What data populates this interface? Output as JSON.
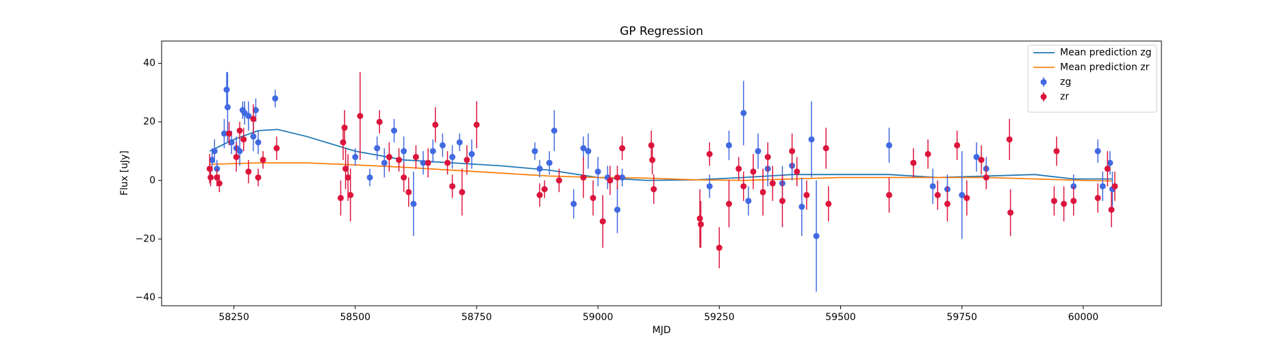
{
  "chart_data": {
    "type": "scatter",
    "title": "GP Regression",
    "xlabel": "MJD",
    "ylabel": "Flux [uJy]",
    "xlim": [
      58101,
      60161
    ],
    "ylim": [
      -42.8,
      47.6
    ],
    "xticks": [
      58250,
      58500,
      58750,
      59000,
      59250,
      59500,
      59750,
      60000
    ],
    "yticks": [
      {
        "value": -40,
        "label": "−40"
      },
      {
        "value": -20,
        "label": "−20"
      },
      0,
      20,
      40
    ],
    "legend": "upper right",
    "lines": [
      {
        "name": "Mean prediction zg",
        "color": "#1f77b4",
        "x": [
          58200,
          58250,
          58300,
          58340,
          58400,
          58500,
          58600,
          58700,
          58800,
          58900,
          59000,
          59100,
          59200,
          59300,
          59400,
          59500,
          59600,
          59700,
          59800,
          59900,
          59980,
          60060
        ],
        "values": [
          10,
          14,
          17,
          17.4,
          15,
          10,
          7,
          6,
          5,
          3.5,
          1,
          0,
          0.2,
          1,
          2,
          2,
          2,
          1,
          1.5,
          2,
          0.5,
          0.5
        ]
      },
      {
        "name": "Mean prediction zr",
        "color": "#ff7f0e",
        "x": [
          58200,
          58300,
          58400,
          58500,
          58600,
          58700,
          58800,
          58900,
          59000,
          59100,
          59200,
          59300,
          59400,
          59500,
          59600,
          59700,
          59800,
          59900,
          60000,
          60060
        ],
        "values": [
          5.5,
          6,
          6,
          5.3,
          4.5,
          3.5,
          2.5,
          1.5,
          1,
          0.8,
          0.2,
          0,
          0.5,
          1,
          1,
          1,
          1,
          0.5,
          0,
          -0.2
        ]
      }
    ],
    "series": [
      {
        "name": "zg",
        "color": "#4169e1",
        "x": [
          58205,
          58210,
          58215,
          58230,
          58235,
          58237,
          58245,
          58255,
          58262,
          58268,
          58272,
          58280,
          58290,
          58295,
          58300,
          58335,
          58500,
          58530,
          58545,
          58560,
          58580,
          58600,
          58620,
          58640,
          58660,
          58680,
          58700,
          58715,
          58740,
          58870,
          58880,
          58900,
          58910,
          58950,
          58970,
          58980,
          59000,
          59020,
          59040,
          59050,
          59230,
          59270,
          59300,
          59310,
          59330,
          59350,
          59380,
          59400,
          59420,
          59440,
          59450,
          59600,
          59690,
          59720,
          59750,
          59780,
          59800,
          59980,
          60030,
          60040,
          60055,
          60060
        ],
        "values": [
          7,
          10,
          4,
          16,
          31,
          25,
          13,
          11,
          10,
          24,
          23,
          22,
          15,
          24,
          13,
          28,
          8,
          1,
          11,
          6,
          17,
          10,
          -8,
          6,
          10,
          12,
          8,
          13,
          9,
          10,
          4,
          6,
          17,
          -8,
          11,
          10,
          3,
          1,
          -10,
          1,
          -2,
          12,
          23,
          -7,
          10,
          4,
          -1,
          5,
          -9,
          14,
          -19,
          12,
          -2,
          -3,
          -5,
          8,
          4,
          -2,
          10,
          -2,
          6,
          -3
        ],
        "errors": [
          4,
          4,
          3,
          5,
          6,
          12,
          4,
          4,
          5,
          3,
          4,
          5,
          5,
          4,
          4,
          3,
          3,
          3,
          4,
          5,
          4,
          5,
          11,
          4,
          4,
          4,
          4,
          3,
          5,
          3,
          3,
          4,
          7,
          5,
          4,
          6,
          5,
          4,
          8,
          3,
          4,
          5,
          11,
          5,
          6,
          6,
          6,
          5,
          10,
          13,
          19,
          6,
          6,
          5,
          15,
          5,
          4,
          4,
          4,
          5,
          4,
          6
        ]
      },
      {
        "name": "zr",
        "color": "#dc143c",
        "x": [
          58200,
          58202,
          58215,
          58220,
          58240,
          58255,
          58262,
          58270,
          58280,
          58290,
          58300,
          58310,
          58338,
          58470,
          58475,
          58478,
          58480,
          58485,
          58490,
          58510,
          58550,
          58570,
          58590,
          58600,
          58610,
          58625,
          58650,
          58665,
          58690,
          58700,
          58720,
          58730,
          58750,
          58880,
          58890,
          58920,
          58970,
          58990,
          59010,
          59025,
          59040,
          59050,
          59110,
          59112,
          59115,
          59210,
          59212,
          59230,
          59250,
          59270,
          59290,
          59300,
          59320,
          59340,
          59350,
          59360,
          59380,
          59400,
          59410,
          59430,
          59470,
          59475,
          59600,
          59650,
          59680,
          59700,
          59720,
          59740,
          59760,
          59790,
          59800,
          59850,
          59848,
          59940,
          59945,
          59960,
          59980,
          60030,
          60050,
          60058,
          60065
        ],
        "values": [
          4,
          1,
          1,
          -1,
          16,
          8,
          17,
          14,
          3,
          21,
          1,
          7,
          11,
          -6,
          13,
          18,
          4,
          1,
          -5,
          22,
          20,
          8,
          7,
          1,
          -4,
          8,
          6,
          19,
          6,
          -2,
          -4,
          7,
          19,
          -5,
          -3,
          0,
          1,
          -6,
          -14,
          0,
          1,
          11,
          12,
          7,
          -3,
          -13,
          -15,
          9,
          -23,
          -8,
          4,
          -2,
          3,
          -4,
          8,
          -1,
          -7,
          10,
          3,
          -5,
          11,
          -8,
          -5,
          6,
          9,
          -5,
          -8,
          12,
          -6,
          7,
          1,
          -11,
          14,
          -7,
          10,
          -8,
          -7,
          -6,
          4,
          -10,
          -2
        ],
        "errors": [
          5,
          3,
          3,
          3,
          4,
          5,
          3,
          4,
          4,
          5,
          3,
          3,
          4,
          6,
          6,
          6,
          7,
          8,
          9,
          15,
          4,
          5,
          4,
          5,
          5,
          4,
          5,
          6,
          4,
          4,
          8,
          5,
          8,
          4,
          3,
          4,
          7,
          6,
          9,
          5,
          4,
          4,
          5,
          5,
          5,
          10,
          8,
          4,
          7,
          8,
          4,
          5,
          6,
          8,
          5,
          6,
          9,
          6,
          5,
          5,
          7,
          6,
          6,
          5,
          5,
          5,
          6,
          5,
          6,
          5,
          4,
          8,
          7,
          5,
          5,
          6,
          5,
          5,
          6,
          6,
          5
        ]
      }
    ]
  }
}
